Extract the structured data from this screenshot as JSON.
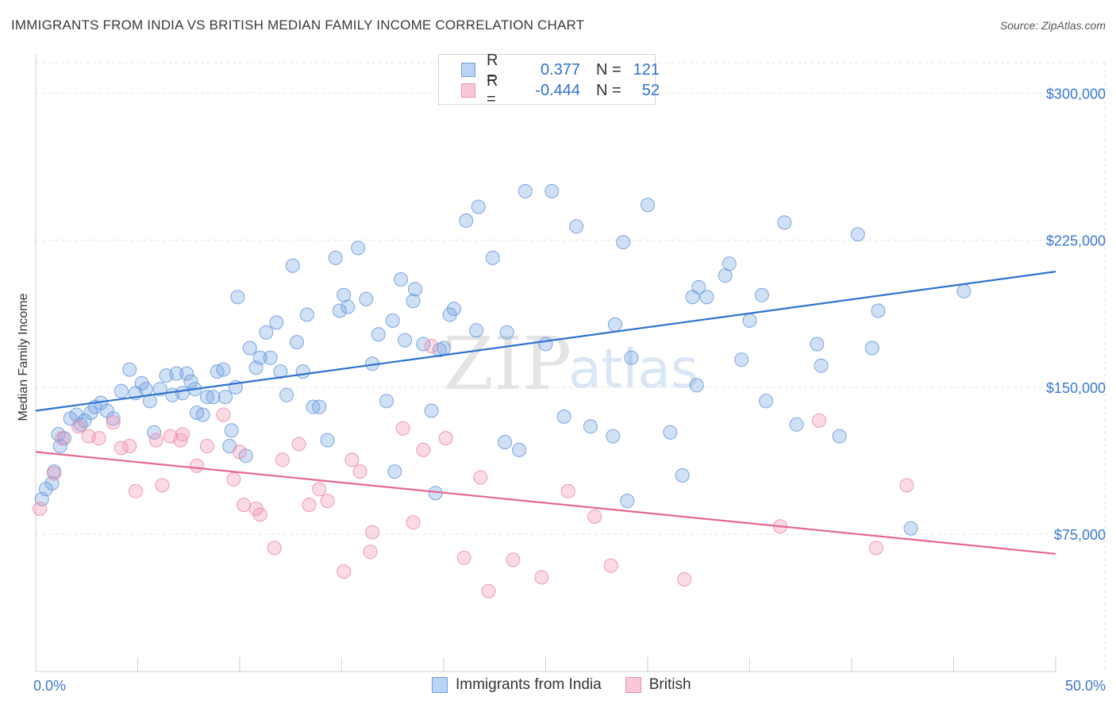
{
  "header": {
    "title": "IMMIGRANTS FROM INDIA VS BRITISH MEDIAN FAMILY INCOME CORRELATION CHART",
    "source": "Source: ZipAtlas.com"
  },
  "watermark": {
    "zip": "ZIP",
    "atlas": "atlas"
  },
  "legend": {
    "rows": [
      {
        "r_label": "R =",
        "r_value": "0.377",
        "n_label": "N =",
        "n_value": "121",
        "color": "#6e9fe0"
      },
      {
        "r_label": "R =",
        "r_value": "-0.444",
        "n_label": "N =",
        "n_value": "52",
        "color": "#ee8fae"
      }
    ]
  },
  "bottom_legend": {
    "items": [
      {
        "label": "Immigrants from India",
        "color": "#6e9fe0"
      },
      {
        "label": "British",
        "color": "#ee8fae"
      }
    ]
  },
  "chart_data": {
    "type": "scatter",
    "title": "IMMIGRANTS FROM INDIA VS BRITISH MEDIAN FAMILY INCOME CORRELATION CHART",
    "xlabel": "",
    "ylabel": "Median Family Income",
    "xlim": [
      0,
      50
    ],
    "ylim": [
      5000,
      320000
    ],
    "x_tick_labels": [
      "0.0%",
      "50.0%"
    ],
    "y_ticks": [
      75000,
      150000,
      225000,
      300000
    ],
    "y_tick_labels": [
      "$75,000",
      "$150,000",
      "$225,000",
      "$300,000"
    ],
    "grid": true,
    "legend_position": "top-center",
    "series": [
      {
        "name": "Immigrants from India",
        "color": "#6e9fe0",
        "line_color": "#2f72d0",
        "r": 0.377,
        "n": 121,
        "trend": {
          "x": [
            0,
            50
          ],
          "y": [
            138000,
            209000
          ]
        },
        "points": [
          [
            0.3,
            93000
          ],
          [
            0.5,
            98000
          ],
          [
            0.8,
            101000
          ],
          [
            0.9,
            107000
          ],
          [
            1.1,
            126000
          ],
          [
            1.2,
            120000
          ],
          [
            1.4,
            124000
          ],
          [
            1.7,
            134000
          ],
          [
            2.0,
            136000
          ],
          [
            2.2,
            131000
          ],
          [
            2.4,
            133000
          ],
          [
            2.7,
            137000
          ],
          [
            2.9,
            140000
          ],
          [
            3.2,
            142000
          ],
          [
            3.5,
            138000
          ],
          [
            3.8,
            134000
          ],
          [
            4.2,
            148000
          ],
          [
            4.6,
            159000
          ],
          [
            4.9,
            147000
          ],
          [
            5.2,
            152000
          ],
          [
            5.4,
            149000
          ],
          [
            5.6,
            143000
          ],
          [
            5.8,
            127000
          ],
          [
            6.1,
            149000
          ],
          [
            6.4,
            156000
          ],
          [
            6.7,
            146000
          ],
          [
            6.9,
            157000
          ],
          [
            7.2,
            147000
          ],
          [
            7.4,
            157000
          ],
          [
            7.6,
            153000
          ],
          [
            7.8,
            149000
          ],
          [
            7.9,
            137000
          ],
          [
            8.2,
            136000
          ],
          [
            8.4,
            145000
          ],
          [
            8.7,
            145000
          ],
          [
            8.9,
            158000
          ],
          [
            9.2,
            159000
          ],
          [
            9.3,
            145000
          ],
          [
            9.5,
            120000
          ],
          [
            9.6,
            128000
          ],
          [
            9.8,
            150000
          ],
          [
            9.9,
            196000
          ],
          [
            10.3,
            115000
          ],
          [
            10.5,
            170000
          ],
          [
            10.8,
            160000
          ],
          [
            11.0,
            165000
          ],
          [
            11.3,
            178000
          ],
          [
            11.5,
            165000
          ],
          [
            11.8,
            183000
          ],
          [
            12.0,
            158000
          ],
          [
            12.3,
            146000
          ],
          [
            12.6,
            212000
          ],
          [
            12.8,
            173000
          ],
          [
            13.1,
            158000
          ],
          [
            13.3,
            187000
          ],
          [
            13.6,
            140000
          ],
          [
            13.9,
            140000
          ],
          [
            14.3,
            123000
          ],
          [
            14.7,
            216000
          ],
          [
            14.9,
            189000
          ],
          [
            15.1,
            197000
          ],
          [
            15.3,
            191000
          ],
          [
            15.8,
            221000
          ],
          [
            16.2,
            195000
          ],
          [
            16.5,
            162000
          ],
          [
            16.8,
            177000
          ],
          [
            17.2,
            143000
          ],
          [
            17.5,
            184000
          ],
          [
            17.6,
            107000
          ],
          [
            17.9,
            205000
          ],
          [
            18.1,
            174000
          ],
          [
            18.5,
            194000
          ],
          [
            18.6,
            200000
          ],
          [
            19.0,
            172000
          ],
          [
            19.4,
            138000
          ],
          [
            19.6,
            96000
          ],
          [
            19.8,
            169000
          ],
          [
            20.0,
            170000
          ],
          [
            20.3,
            187000
          ],
          [
            20.5,
            190000
          ],
          [
            21.1,
            235000
          ],
          [
            21.6,
            179000
          ],
          [
            21.7,
            242000
          ],
          [
            22.4,
            216000
          ],
          [
            23.0,
            122000
          ],
          [
            23.1,
            178000
          ],
          [
            23.7,
            118000
          ],
          [
            24.0,
            250000
          ],
          [
            25.0,
            172000
          ],
          [
            25.3,
            250000
          ],
          [
            25.9,
            135000
          ],
          [
            26.5,
            232000
          ],
          [
            27.2,
            130000
          ],
          [
            28.3,
            125000
          ],
          [
            28.4,
            182000
          ],
          [
            28.8,
            224000
          ],
          [
            29.0,
            92000
          ],
          [
            29.2,
            165000
          ],
          [
            30.0,
            243000
          ],
          [
            31.1,
            127000
          ],
          [
            31.7,
            105000
          ],
          [
            32.2,
            196000
          ],
          [
            32.4,
            151000
          ],
          [
            32.5,
            201000
          ],
          [
            32.9,
            196000
          ],
          [
            33.8,
            207000
          ],
          [
            34.0,
            213000
          ],
          [
            34.6,
            164000
          ],
          [
            35.0,
            184000
          ],
          [
            35.6,
            197000
          ],
          [
            35.8,
            143000
          ],
          [
            36.7,
            234000
          ],
          [
            37.3,
            131000
          ],
          [
            38.3,
            172000
          ],
          [
            38.5,
            161000
          ],
          [
            39.4,
            125000
          ],
          [
            40.3,
            228000
          ],
          [
            41.0,
            170000
          ],
          [
            41.3,
            189000
          ],
          [
            42.9,
            78000
          ],
          [
            45.5,
            199000
          ]
        ]
      },
      {
        "name": "British",
        "color": "#ee8fae",
        "line_color": "#e46892",
        "r": -0.444,
        "n": 52,
        "trend": {
          "x": [
            0,
            50
          ],
          "y": [
            117000,
            65000
          ]
        },
        "points": [
          [
            0.2,
            88000
          ],
          [
            0.9,
            106000
          ],
          [
            1.3,
            124000
          ],
          [
            2.1,
            130000
          ],
          [
            2.6,
            125000
          ],
          [
            3.1,
            124000
          ],
          [
            3.8,
            132000
          ],
          [
            4.2,
            119000
          ],
          [
            4.6,
            120000
          ],
          [
            4.9,
            97000
          ],
          [
            5.9,
            123000
          ],
          [
            6.2,
            100000
          ],
          [
            6.6,
            125000
          ],
          [
            7.1,
            123000
          ],
          [
            7.2,
            126000
          ],
          [
            7.9,
            110000
          ],
          [
            8.4,
            120000
          ],
          [
            9.2,
            136000
          ],
          [
            9.7,
            103000
          ],
          [
            10.0,
            117000
          ],
          [
            10.2,
            90000
          ],
          [
            10.8,
            88000
          ],
          [
            11.0,
            85000
          ],
          [
            11.7,
            68000
          ],
          [
            12.1,
            113000
          ],
          [
            12.9,
            121000
          ],
          [
            13.4,
            90000
          ],
          [
            13.9,
            98000
          ],
          [
            14.3,
            92000
          ],
          [
            15.1,
            56000
          ],
          [
            15.5,
            113000
          ],
          [
            15.9,
            107000
          ],
          [
            16.4,
            66000
          ],
          [
            16.5,
            76000
          ],
          [
            18.0,
            129000
          ],
          [
            18.5,
            81000
          ],
          [
            19.0,
            118000
          ],
          [
            19.4,
            171000
          ],
          [
            20.1,
            124000
          ],
          [
            21.0,
            63000
          ],
          [
            21.8,
            104000
          ],
          [
            22.2,
            46000
          ],
          [
            23.4,
            62000
          ],
          [
            24.8,
            53000
          ],
          [
            26.1,
            97000
          ],
          [
            27.4,
            84000
          ],
          [
            28.2,
            59000
          ],
          [
            31.8,
            52000
          ],
          [
            36.5,
            79000
          ],
          [
            38.4,
            133000
          ],
          [
            41.2,
            68000
          ],
          [
            42.7,
            100000
          ]
        ]
      }
    ]
  }
}
